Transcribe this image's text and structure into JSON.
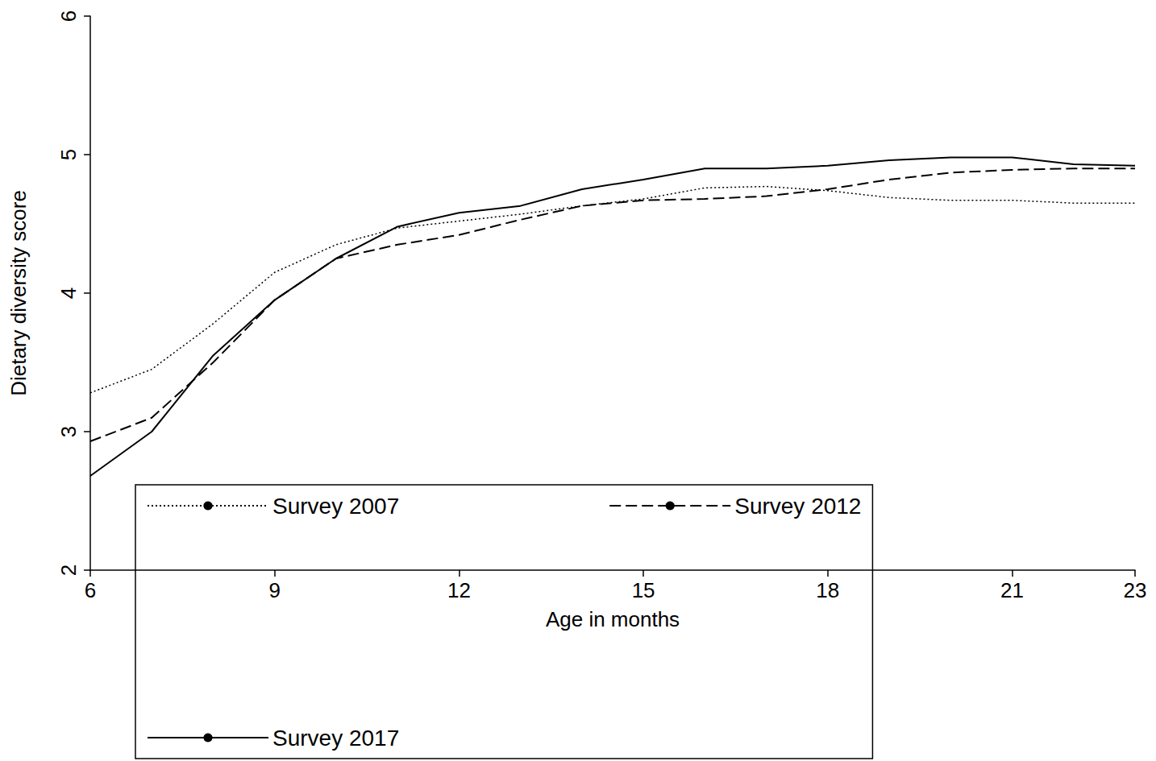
{
  "chart_data": {
    "type": "line",
    "x_label": "Age in months",
    "y_label": "Dietary diversity score",
    "x": [
      6,
      7,
      8,
      9,
      10,
      11,
      12,
      13,
      14,
      15,
      16,
      17,
      18,
      19,
      20,
      21,
      22,
      23
    ],
    "series": [
      {
        "name": "Survey 2007",
        "color": "#000000",
        "line_style": "dotted",
        "values": [
          3.28,
          3.45,
          3.78,
          4.15,
          4.35,
          4.47,
          4.52,
          4.57,
          4.63,
          4.68,
          4.76,
          4.77,
          4.74,
          4.69,
          4.67,
          4.67,
          4.65,
          4.65
        ]
      },
      {
        "name": "Survey 2012",
        "color": "#000000",
        "line_style": "dashed",
        "values": [
          2.93,
          3.1,
          3.5,
          3.95,
          4.25,
          4.35,
          4.42,
          4.53,
          4.63,
          4.67,
          4.68,
          4.7,
          4.75,
          4.82,
          4.87,
          4.89,
          4.9,
          4.9
        ]
      },
      {
        "name": "Survey 2017",
        "color": "#000000",
        "line_style": "solid",
        "values": [
          2.68,
          3.0,
          3.55,
          3.95,
          4.25,
          4.48,
          4.58,
          4.63,
          4.75,
          4.82,
          4.9,
          4.9,
          4.92,
          4.96,
          4.98,
          4.98,
          4.93,
          4.92
        ]
      }
    ],
    "xlim": [
      6,
      23
    ],
    "xticks": [
      6,
      9,
      12,
      15,
      18,
      21,
      23
    ],
    "ylim": [
      2,
      6
    ],
    "yticks": [
      2,
      3,
      4,
      5,
      6
    ],
    "grid": false,
    "legend": "bottom"
  }
}
